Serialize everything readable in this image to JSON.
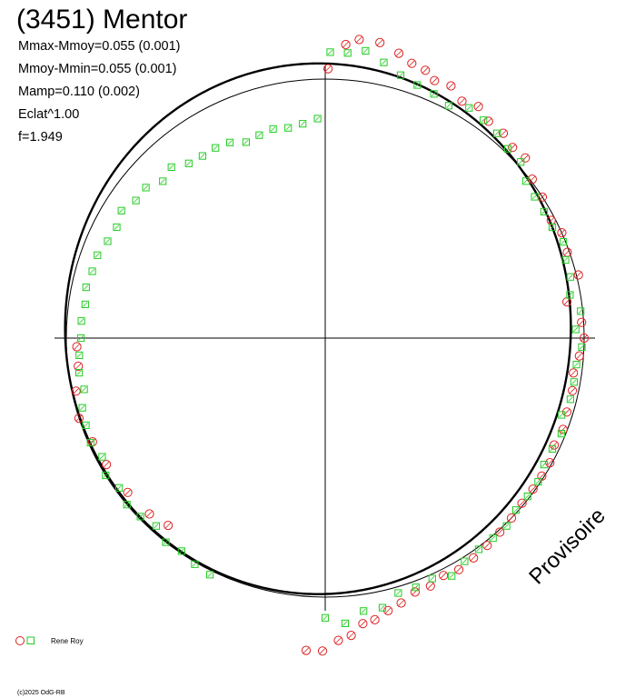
{
  "chart_data": {
    "type": "scatter",
    "title": "(3451) Mentor",
    "stats": [
      "Mmax-Mmoy=0.055 (0.001)",
      "Mmoy-Mmin=0.055 (0.001)",
      "Mamp=0.110 (0.002)",
      "Eclat^1.00",
      "f=1.949"
    ],
    "status_text": "Provisoire",
    "copyright": "(c)2025 OdG-RB",
    "polar": true,
    "axes": "crosshair",
    "colors": {
      "observer_circle": "#dd2222",
      "observer_square": "#22cc22"
    },
    "legend": {
      "placement": "bottom-left",
      "observer": "Rene Roy"
    },
    "series": [
      {
        "name": "Rene Roy",
        "marker": "circle",
        "points": [
          [
            0.6,
            1.3
          ],
          [
            4.0,
            1.42
          ],
          [
            6.5,
            1.45
          ],
          [
            10.5,
            1.45
          ],
          [
            14.5,
            1.42
          ],
          [
            17.5,
            1.39
          ],
          [
            20.5,
            1.38
          ],
          [
            23.0,
            1.35
          ],
          [
            26.5,
            1.36
          ],
          [
            30.0,
            1.32
          ],
          [
            33.5,
            1.34
          ],
          [
            37.0,
            1.31
          ],
          [
            41.0,
            1.31
          ],
          [
            44.5,
            1.29
          ],
          [
            48.0,
            1.3
          ],
          [
            52.5,
            1.26
          ],
          [
            57.0,
            1.25
          ],
          [
            62.5,
            1.23
          ],
          [
            66.0,
            1.25
          ],
          [
            70.5,
            1.24
          ],
          [
            76.0,
            1.26
          ],
          [
            81.5,
            1.18
          ],
          [
            86.5,
            1.24
          ],
          [
            90.0,
            1.25
          ],
          [
            94.0,
            1.23
          ],
          [
            98.0,
            1.21
          ],
          [
            102.0,
            1.22
          ],
          [
            107.0,
            1.22
          ],
          [
            111.0,
            1.23
          ],
          [
            115.0,
            1.22
          ],
          [
            119.0,
            1.24
          ],
          [
            122.5,
            1.24
          ],
          [
            126.0,
            1.24
          ],
          [
            130.0,
            1.24
          ],
          [
            134.0,
            1.25
          ],
          [
            138.0,
            1.26
          ],
          [
            142.0,
            1.27
          ],
          [
            146.0,
            1.28
          ],
          [
            150.0,
            1.29
          ],
          [
            153.5,
            1.28
          ],
          [
            157.0,
            1.3
          ],
          [
            160.5,
            1.3
          ],
          [
            164.0,
            1.33
          ],
          [
            167.0,
            1.35
          ],
          [
            170.0,
            1.38
          ],
          [
            172.5,
            1.39
          ],
          [
            175.0,
            1.44
          ],
          [
            177.5,
            1.46
          ],
          [
            180.5,
            1.51
          ],
          [
            183.5,
            1.51
          ],
          [
            220.0,
            1.18
          ],
          [
            225.0,
            1.2
          ],
          [
            232.0,
            1.21
          ],
          [
            240.0,
            1.22
          ],
          [
            246.0,
            1.23
          ],
          [
            252.0,
            1.25
          ],
          [
            258.0,
            1.23
          ],
          [
            263.5,
            1.2
          ],
          [
            268.0,
            1.2
          ]
        ]
      },
      {
        "name": "Rene Roy",
        "marker": "square",
        "points": [
          [
            1.0,
            1.38
          ],
          [
            4.5,
            1.38
          ],
          [
            8.0,
            1.4
          ],
          [
            12.0,
            1.36
          ],
          [
            16.0,
            1.32
          ],
          [
            20.0,
            1.3
          ],
          [
            24.0,
            1.29
          ],
          [
            28.0,
            1.27
          ],
          [
            32.0,
            1.31
          ],
          [
            36.0,
            1.3
          ],
          [
            40.0,
            1.29
          ],
          [
            44.0,
            1.27
          ],
          [
            48.0,
            1.27
          ],
          [
            52.0,
            1.23
          ],
          [
            56.0,
            1.22
          ],
          [
            60.0,
            1.22
          ],
          [
            64.0,
            1.22
          ],
          [
            68.0,
            1.24
          ],
          [
            72.0,
            1.22
          ],
          [
            76.0,
            1.22
          ],
          [
            80.0,
            1.2
          ],
          [
            84.0,
            1.24
          ],
          [
            88.0,
            1.21
          ],
          [
            92.0,
            1.24
          ],
          [
            96.0,
            1.22
          ],
          [
            100.0,
            1.22
          ],
          [
            104.0,
            1.22
          ],
          [
            108.0,
            1.2
          ],
          [
            112.0,
            1.23
          ],
          [
            116.0,
            1.22
          ],
          [
            120.0,
            1.22
          ],
          [
            124.0,
            1.24
          ],
          [
            128.0,
            1.24
          ],
          [
            132.0,
            1.24
          ],
          [
            136.0,
            1.26
          ],
          [
            140.0,
            1.26
          ],
          [
            144.0,
            1.26
          ],
          [
            148.0,
            1.27
          ],
          [
            152.0,
            1.3
          ],
          [
            156.0,
            1.27
          ],
          [
            160.0,
            1.28
          ],
          [
            164.0,
            1.28
          ],
          [
            168.0,
            1.33
          ],
          [
            172.0,
            1.33
          ],
          [
            176.0,
            1.38
          ],
          [
            180.0,
            1.35
          ],
          [
            206.0,
            1.27
          ],
          [
            210.0,
            1.26
          ],
          [
            214.0,
            1.24
          ],
          [
            218.0,
            1.25
          ],
          [
            222.0,
            1.22
          ],
          [
            226.0,
            1.24
          ],
          [
            230.0,
            1.25
          ],
          [
            234.0,
            1.23
          ],
          [
            238.0,
            1.25
          ],
          [
            242.0,
            1.22
          ],
          [
            246.0,
            1.24
          ],
          [
            250.0,
            1.23
          ],
          [
            254.0,
            1.22
          ],
          [
            258.0,
            1.19
          ],
          [
            262.0,
            1.2
          ],
          [
            266.0,
            1.19
          ],
          [
            270.0,
            1.18
          ],
          [
            274.0,
            1.18
          ],
          [
            278.0,
            1.17
          ],
          [
            282.0,
            1.18
          ],
          [
            286.0,
            1.17
          ],
          [
            290.0,
            1.17
          ],
          [
            294.0,
            1.15
          ],
          [
            298.0,
            1.14
          ],
          [
            302.0,
            1.16
          ],
          [
            306.0,
            1.13
          ],
          [
            310.0,
            1.13
          ],
          [
            314.0,
            1.09
          ],
          [
            318.0,
            1.11
          ],
          [
            322.0,
            1.07
          ],
          [
            326.0,
            1.06
          ],
          [
            330.0,
            1.06
          ],
          [
            334.0,
            1.05
          ],
          [
            338.0,
            1.02
          ],
          [
            342.0,
            1.03
          ],
          [
            346.0,
            1.04
          ],
          [
            350.0,
            1.03
          ],
          [
            354.0,
            1.04
          ],
          [
            358.0,
            1.06
          ]
        ]
      }
    ]
  }
}
